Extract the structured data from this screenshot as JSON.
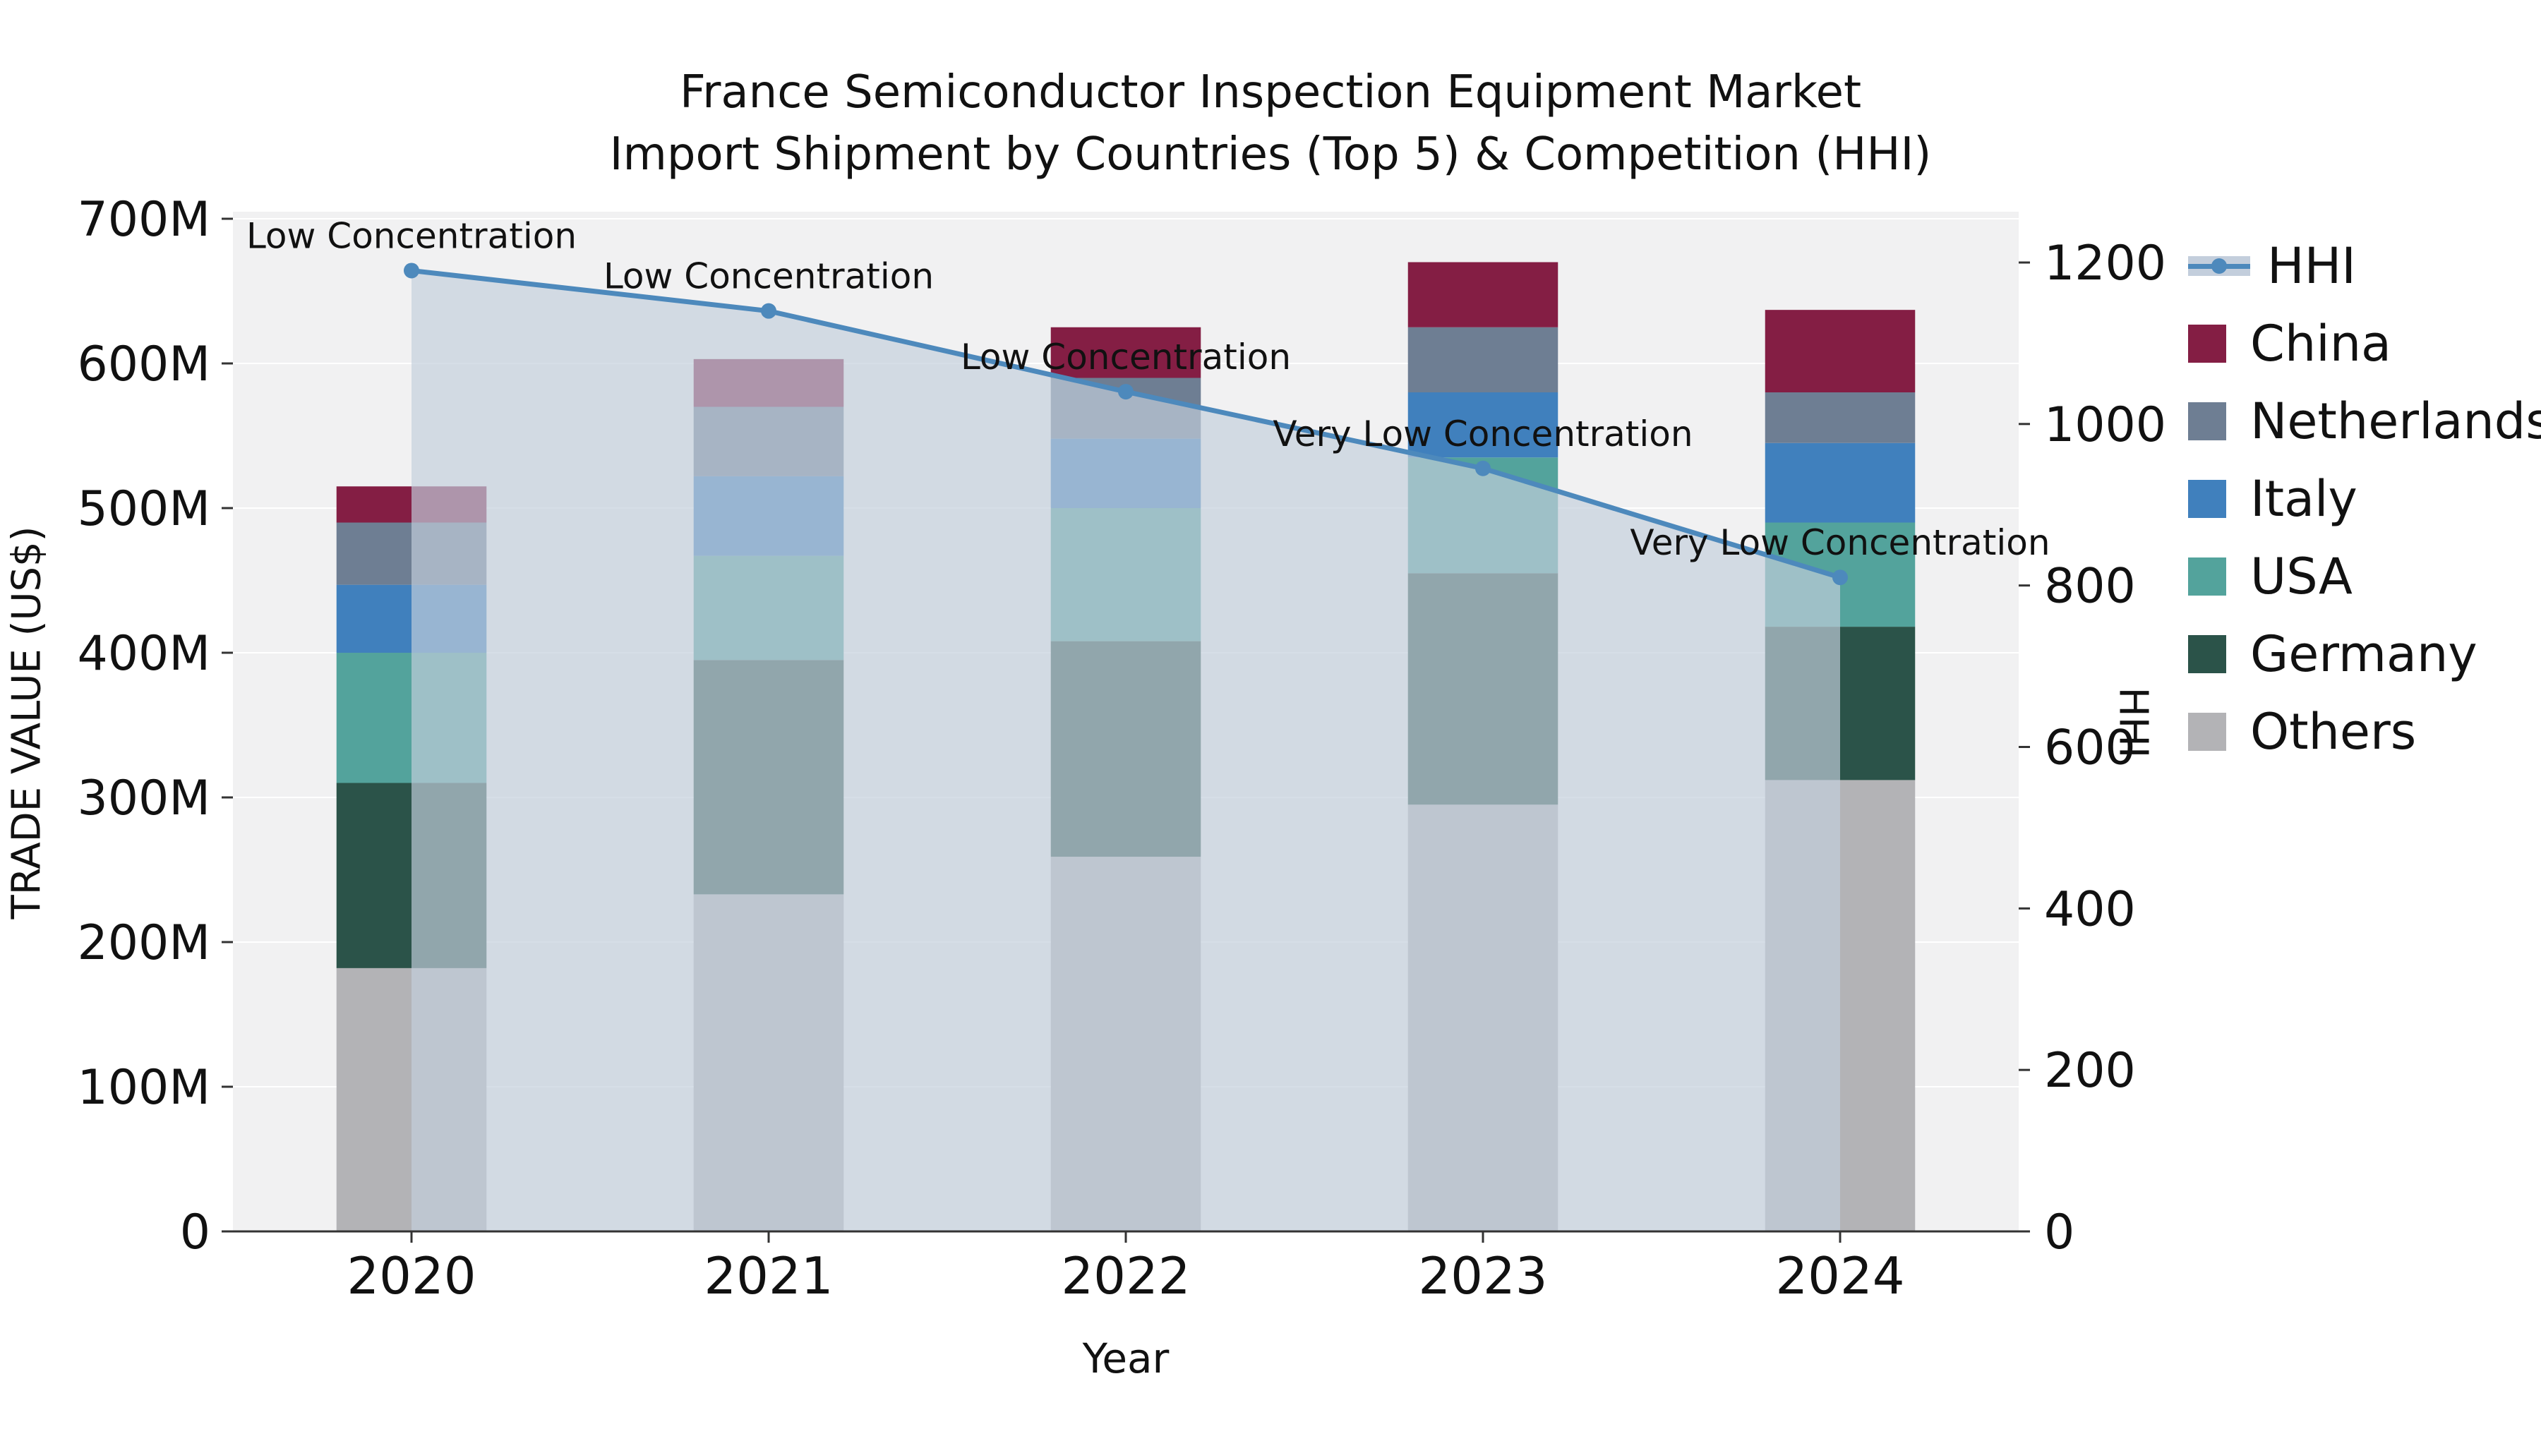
{
  "chart_data": {
    "type": "bar",
    "stacked": true,
    "title": "France Semiconductor Inspection Equipment Market",
    "subtitle": "Import Shipment by Countries (Top 5) & Competition (HHI)",
    "xlabel": "Year",
    "ylabel": "TRADE VALUE (US$)",
    "ylabel_right": "HHI",
    "categories": [
      "2020",
      "2021",
      "2022",
      "2023",
      "2024"
    ],
    "value_unit": "M US$",
    "plot_bg": "#f1f1f2",
    "grid": true,
    "series": [
      {
        "name": "Others",
        "color": "#b3b3b6",
        "values": [
          182,
          233,
          259,
          295,
          312
        ]
      },
      {
        "name": "Germany",
        "color": "#2b5349",
        "values": [
          128,
          162,
          149,
          160,
          106
        ]
      },
      {
        "name": "USA",
        "color": "#53a39c",
        "values": [
          90,
          72,
          92,
          80,
          72
        ]
      },
      {
        "name": "Italy",
        "color": "#4080bd",
        "values": [
          47,
          55,
          48,
          45,
          55
        ]
      },
      {
        "name": "Netherlands",
        "color": "#6e7e93",
        "values": [
          43,
          48,
          42,
          45,
          35
        ]
      },
      {
        "name": "China",
        "color": "#841e44",
        "values": [
          25,
          33,
          35,
          45,
          57
        ]
      }
    ],
    "hhi": {
      "name": "HHI",
      "color": "#4d89bc",
      "fill_color": "#c3cedc",
      "fill_opacity": 0.68,
      "values": [
        1190,
        1140,
        1040,
        945,
        810
      ],
      "annotations": [
        "Low Concentration",
        "Low Concentration",
        "Low Concentration",
        "Very Low Concentration",
        "Very Low Concentration"
      ]
    },
    "left_axis": {
      "min": 0,
      "max": 700,
      "tick_values": [
        0,
        100,
        200,
        300,
        400,
        500,
        600,
        700
      ],
      "tick_labels": [
        "0",
        "100M",
        "200M",
        "300M",
        "400M",
        "500M",
        "600M",
        "700M"
      ]
    },
    "right_axis": {
      "min": 0,
      "max": 1200,
      "tick_values": [
        0,
        200,
        400,
        600,
        800,
        1000,
        1200
      ],
      "tick_labels": [
        "0",
        "200",
        "400",
        "600",
        "800",
        "1000",
        "1200"
      ]
    },
    "legend": {
      "position": "right",
      "entries": [
        "HHI",
        "China",
        "Netherlands",
        "Italy",
        "USA",
        "Germany",
        "Others"
      ]
    }
  }
}
